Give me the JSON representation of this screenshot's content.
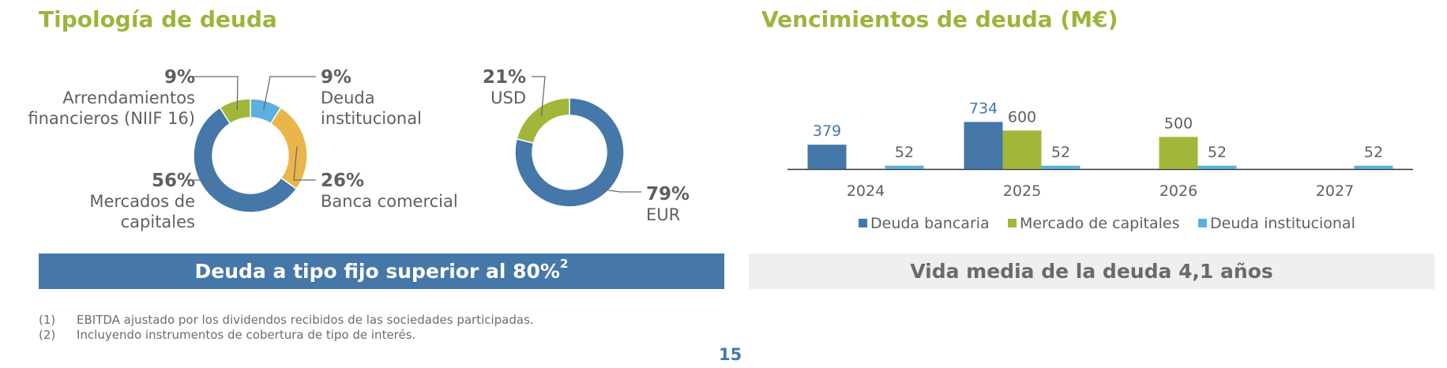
{
  "left_title": "Tipología de deuda",
  "right_title": "Vencimientos de deuda (M€)",
  "banners": {
    "fixed_rate": "Deuda a tipo fijo superior al 80%",
    "fixed_rate_sup": "2",
    "avg_life": "Vida media de la deuda 4,1 años"
  },
  "footnotes": [
    {
      "num": "(1)",
      "text": "EBITDA ajustado por los dividendos recibidos de las sociedades participadas."
    },
    {
      "num": "(2)",
      "text": "Incluyendo instrumentos de cobertura de tipo de interés."
    }
  ],
  "page_number": "15",
  "colors": {
    "blue": "#4577a8",
    "green": "#a2b63a",
    "yellow": "#eab54a",
    "light_blue": "#5bb0df",
    "title_green": "#9bb53a"
  },
  "chart_data": [
    {
      "type": "pie",
      "slices": [
        {
          "pct": "9%",
          "value": 9,
          "label": [
            "Deuda",
            "institucional"
          ],
          "color": "#5bb0df"
        },
        {
          "pct": "26%",
          "value": 26,
          "label": [
            "Banca comercial"
          ],
          "color": "#eab54a"
        },
        {
          "pct": "56%",
          "value": 56,
          "label": [
            "Mercados de",
            "capitales"
          ],
          "color": "#4577a8"
        },
        {
          "pct": "9%",
          "value": 9,
          "label": [
            "Arrendamientos",
            "financieros (NIIF 16)"
          ],
          "color": "#a2b63a"
        }
      ]
    },
    {
      "type": "pie",
      "slices": [
        {
          "pct": "79%",
          "value": 79,
          "label": [
            "EUR"
          ],
          "color": "#4577a8"
        },
        {
          "pct": "21%",
          "value": 21,
          "label": [
            "USD"
          ],
          "color": "#a2b63a"
        }
      ]
    },
    {
      "type": "bar",
      "categories": [
        "2024",
        "2025",
        "2026",
        "2027"
      ],
      "series": [
        {
          "name": "Deuda bancaria",
          "color": "#4577a8",
          "values": [
            379,
            734,
            null,
            null
          ]
        },
        {
          "name": "Mercado de capitales",
          "color": "#a2b63a",
          "values": [
            null,
            600,
            500,
            null
          ]
        },
        {
          "name": "Deuda institucional",
          "color": "#5bb0df",
          "values": [
            52,
            52,
            52,
            52
          ]
        }
      ]
    }
  ]
}
